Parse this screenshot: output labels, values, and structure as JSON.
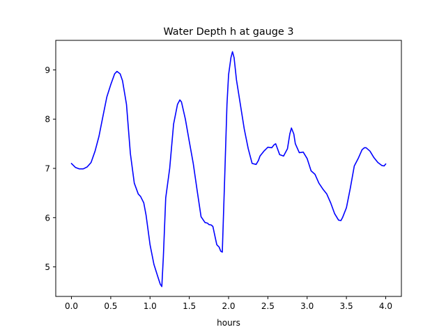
{
  "chart_data": {
    "type": "line",
    "title": "Water Depth h at gauge 3",
    "xlabel": "hours",
    "ylabel": "",
    "xlim": [
      -0.2,
      4.2
    ],
    "ylim": [
      4.4,
      9.6
    ],
    "xticks": [
      0.0,
      0.5,
      1.0,
      1.5,
      2.0,
      2.5,
      3.0,
      3.5,
      4.0
    ],
    "xtick_labels": [
      "0.0",
      "0.5",
      "1.0",
      "1.5",
      "2.0",
      "2.5",
      "3.0",
      "3.5",
      "4.0"
    ],
    "yticks": [
      5,
      6,
      7,
      8,
      9
    ],
    "ytick_labels": [
      "5",
      "6",
      "7",
      "8",
      "9"
    ],
    "grid": false,
    "legend": "none",
    "series": [
      {
        "color": "#0000ff",
        "x": [
          0.0,
          0.05,
          0.1,
          0.15,
          0.2,
          0.25,
          0.3,
          0.35,
          0.4,
          0.45,
          0.5,
          0.55,
          0.58,
          0.62,
          0.65,
          0.7,
          0.75,
          0.8,
          0.85,
          0.88,
          0.92,
          0.95,
          1.0,
          1.05,
          1.1,
          1.13,
          1.15,
          1.17,
          1.2,
          1.25,
          1.3,
          1.35,
          1.38,
          1.4,
          1.45,
          1.5,
          1.55,
          1.6,
          1.65,
          1.7,
          1.73,
          1.75,
          1.78,
          1.8,
          1.83,
          1.85,
          1.88,
          1.9,
          1.92,
          1.95,
          1.98,
          2.0,
          2.03,
          2.05,
          2.07,
          2.1,
          2.15,
          2.2,
          2.25,
          2.3,
          2.35,
          2.38,
          2.4,
          2.45,
          2.5,
          2.55,
          2.58,
          2.6,
          2.65,
          2.7,
          2.75,
          2.78,
          2.8,
          2.83,
          2.85,
          2.9,
          2.95,
          3.0,
          3.05,
          3.1,
          3.15,
          3.2,
          3.25,
          3.3,
          3.35,
          3.4,
          3.43,
          3.45,
          3.5,
          3.55,
          3.6,
          3.65,
          3.7,
          3.73,
          3.75,
          3.8,
          3.85,
          3.9,
          3.95,
          3.98,
          4.0
        ],
        "values": [
          7.1,
          7.02,
          6.99,
          6.99,
          7.03,
          7.12,
          7.35,
          7.65,
          8.05,
          8.45,
          8.7,
          8.92,
          8.97,
          8.92,
          8.78,
          8.3,
          7.3,
          6.7,
          6.48,
          6.43,
          6.3,
          6.05,
          5.45,
          5.05,
          4.8,
          4.65,
          4.6,
          5.2,
          6.4,
          7.0,
          7.9,
          8.3,
          8.39,
          8.35,
          8.0,
          7.55,
          7.1,
          6.55,
          6.02,
          5.9,
          5.89,
          5.86,
          5.85,
          5.82,
          5.6,
          5.45,
          5.4,
          5.32,
          5.3,
          6.8,
          8.3,
          8.9,
          9.25,
          9.37,
          9.25,
          8.8,
          8.3,
          7.8,
          7.4,
          7.1,
          7.08,
          7.16,
          7.25,
          7.35,
          7.43,
          7.42,
          7.48,
          7.5,
          7.28,
          7.25,
          7.4,
          7.7,
          7.82,
          7.7,
          7.5,
          7.32,
          7.33,
          7.2,
          6.95,
          6.88,
          6.7,
          6.58,
          6.48,
          6.3,
          6.08,
          5.95,
          5.94,
          6.0,
          6.2,
          6.6,
          7.05,
          7.2,
          7.38,
          7.42,
          7.42,
          7.35,
          7.22,
          7.12,
          7.06,
          7.05,
          7.09
        ]
      }
    ]
  }
}
